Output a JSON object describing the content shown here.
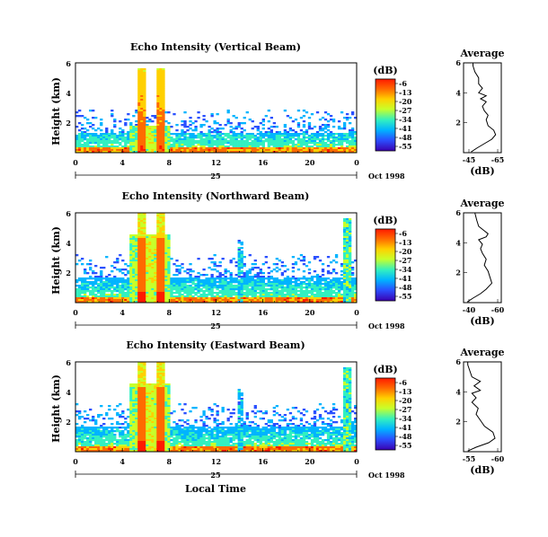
{
  "chart_data": {
    "type": "heatmap",
    "colorbar": {
      "unit": "(dB)",
      "ticks": [
        "-6",
        "-13",
        "-20",
        "-27",
        "-34",
        "-41",
        "-48",
        "-55"
      ],
      "colors": [
        "#ff1a00",
        "#ff6a00",
        "#ffd000",
        "#c8ff2a",
        "#32f0c0",
        "#00b4ff",
        "#2a50ff",
        "#3a00b0"
      ]
    },
    "x_axis": {
      "ticks": [
        "0",
        "4",
        "8",
        "12",
        "16",
        "20",
        "0"
      ],
      "date_label": "25",
      "date_suffix": "Oct 1998",
      "xlabel": "Local Time",
      "xlim": [
        0,
        24
      ]
    },
    "y_axis": {
      "ylabel": "Height (km)",
      "ticks": [
        "2",
        "4",
        "6"
      ],
      "ylim": [
        0,
        6
      ]
    },
    "panels": [
      {
        "id": "vertical",
        "title": "Echo Intensity (Vertical Beam)",
        "average": {
          "title": "Average",
          "xlabel": "(dB)",
          "xticks": [
            "-45",
            "-65"
          ],
          "xlim": [
            -45,
            -65
          ],
          "profile": [
            [
              -49,
              0.05
            ],
            [
              -52,
              0.3
            ],
            [
              -56,
              0.6
            ],
            [
              -60,
              0.9
            ],
            [
              -62,
              1.2
            ],
            [
              -61,
              1.5
            ],
            [
              -58,
              1.8
            ],
            [
              -57,
              2.2
            ],
            [
              -58,
              2.5
            ],
            [
              -56,
              2.8
            ],
            [
              -55,
              3.1
            ],
            [
              -57,
              3.4
            ],
            [
              -54,
              3.6
            ],
            [
              -57,
              3.8
            ],
            [
              -53,
              4.0
            ],
            [
              -55,
              4.3
            ],
            [
              -53,
              4.6
            ],
            [
              -53,
              5.0
            ],
            [
              -51,
              5.4
            ],
            [
              -50,
              5.8
            ],
            [
              -50,
              6.0
            ]
          ]
        }
      },
      {
        "id": "northward",
        "title": "Echo Intensity (Northward Beam)",
        "average": {
          "title": "Average",
          "xlabel": "(dB)",
          "xticks": [
            "-40",
            "-60"
          ],
          "xlim": [
            -40,
            -60
          ],
          "profile": [
            [
              -42,
              0.05
            ],
            [
              -45,
              0.3
            ],
            [
              -49,
              0.6
            ],
            [
              -52,
              0.9
            ],
            [
              -55,
              1.3
            ],
            [
              -54,
              1.7
            ],
            [
              -53,
              2.1
            ],
            [
              -51,
              2.5
            ],
            [
              -52,
              2.9
            ],
            [
              -50,
              3.3
            ],
            [
              -49,
              3.6
            ],
            [
              -50,
              3.9
            ],
            [
              -48,
              4.2
            ],
            [
              -52,
              4.4
            ],
            [
              -53,
              4.6
            ],
            [
              -51,
              4.8
            ],
            [
              -48,
              5.1
            ],
            [
              -47,
              5.5
            ],
            [
              -46,
              6.0
            ]
          ]
        }
      },
      {
        "id": "eastward",
        "title": "Echo Intensity (Eastward Beam)",
        "average": {
          "title": "Average",
          "xlabel": "(dB)",
          "xticks": [
            "-55",
            "-60"
          ],
          "xlim": [
            -52,
            -61
          ],
          "profile": [
            [
              -53,
              0.05
            ],
            [
              -55,
              0.3
            ],
            [
              -58,
              0.6
            ],
            [
              -59.5,
              0.9
            ],
            [
              -59,
              1.3
            ],
            [
              -57,
              1.7
            ],
            [
              -56,
              2.1
            ],
            [
              -55,
              2.5
            ],
            [
              -55.5,
              2.9
            ],
            [
              -54,
              3.3
            ],
            [
              -55,
              3.6
            ],
            [
              -54,
              3.9
            ],
            [
              -56,
              4.1
            ],
            [
              -54.5,
              4.4
            ],
            [
              -56,
              4.7
            ],
            [
              -54,
              5.0
            ],
            [
              -53.5,
              5.4
            ],
            [
              -53,
              5.8
            ],
            [
              -53,
              6.0
            ]
          ]
        }
      }
    ]
  }
}
